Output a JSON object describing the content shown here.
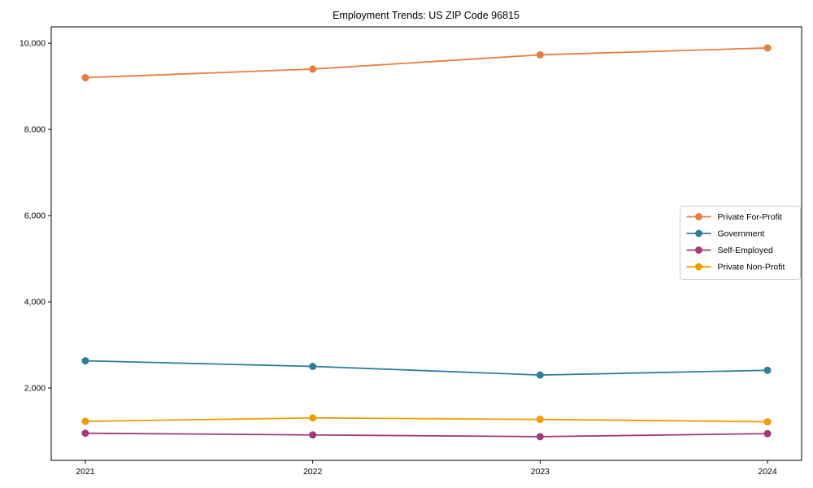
{
  "chart_data": {
    "type": "line",
    "title": "Employment Trends: US ZIP Code 96815",
    "xlabel": "",
    "ylabel": "",
    "x": [
      2021,
      2022,
      2023,
      2024
    ],
    "xtick_labels": [
      "2021",
      "2022",
      "2023",
      "2024"
    ],
    "yticks": [
      2000,
      4000,
      6000,
      8000,
      10000
    ],
    "ytick_labels": [
      "2,000",
      "4,000",
      "6,000",
      "8,000",
      "10,000"
    ],
    "xlim": [
      2020.85,
      2024.15
    ],
    "ylim": [
      320,
      10380
    ],
    "grid": false,
    "marker": "o",
    "legend_position": "center right",
    "legend_border_color": "#cccccc",
    "axes_color": "#000000",
    "background_color": "#ffffff",
    "series": [
      {
        "name": "Private For-Profit",
        "color": "#e87d3f",
        "values": [
          9200,
          9400,
          9730,
          9890
        ]
      },
      {
        "name": "Government",
        "color": "#2e7f9e",
        "values": [
          2630,
          2500,
          2300,
          2410
        ]
      },
      {
        "name": "Self-Employed",
        "color": "#a2397b",
        "values": [
          950,
          910,
          870,
          940
        ]
      },
      {
        "name": "Private Non-Profit",
        "color": "#f09d00",
        "values": [
          1225,
          1305,
          1270,
          1215
        ]
      }
    ]
  }
}
